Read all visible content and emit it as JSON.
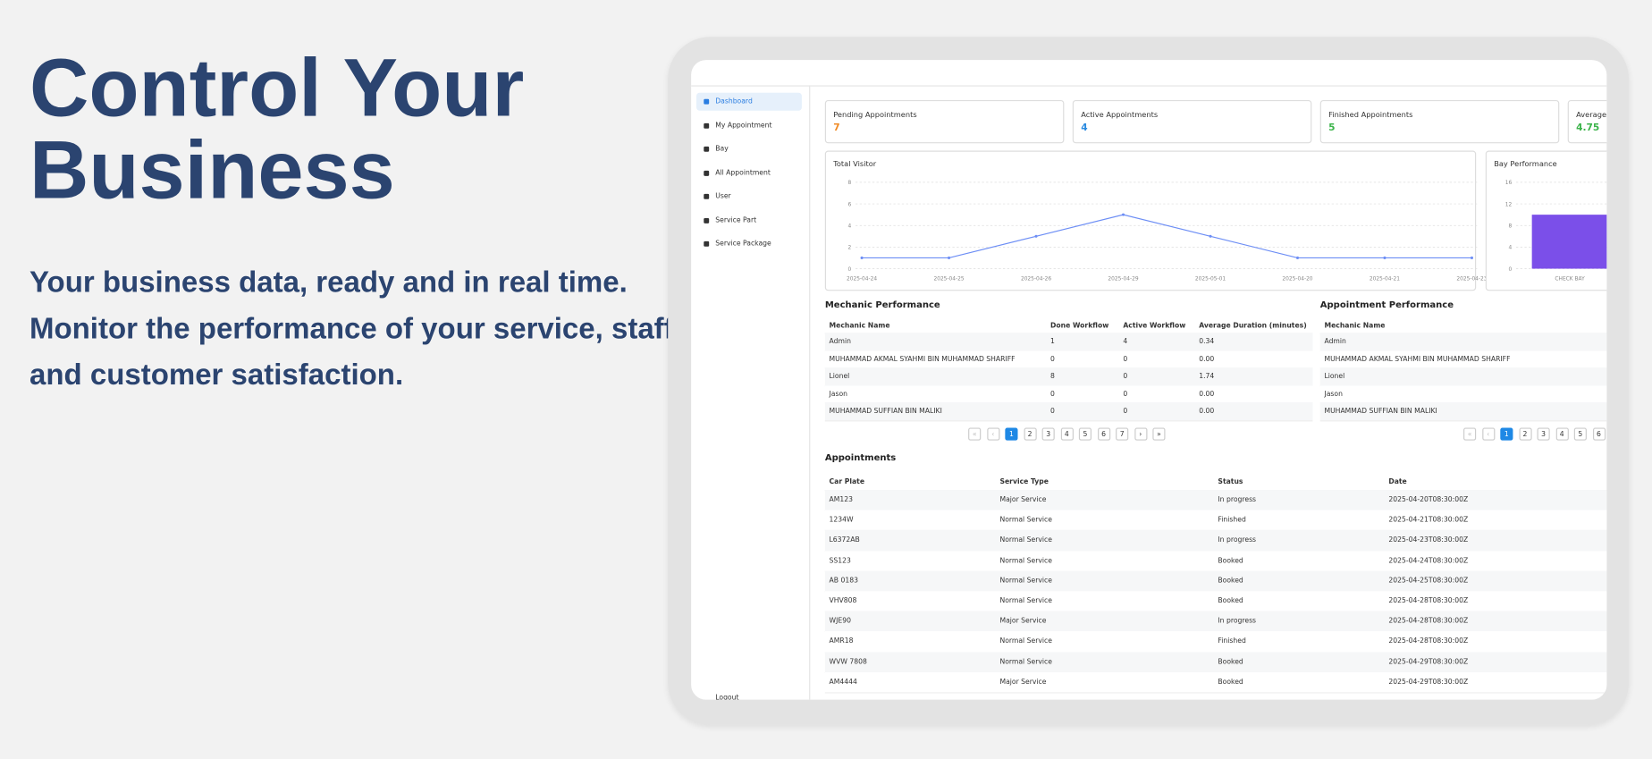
{
  "headline": "Control Your Business",
  "subheadline": "Your business data, ready and in real time. Monitor the performance of your service, staff and customer satisfaction.",
  "sidebar": {
    "items": [
      "Dashboard",
      "My Appointment",
      "Bay",
      "All Appointment",
      "User",
      "Service Part",
      "Service Package"
    ],
    "logout": "Logout"
  },
  "stats": [
    {
      "label": "Pending Appointments",
      "value": 7,
      "color": "#f08a24"
    },
    {
      "label": "Active Appointments",
      "value": 4,
      "color": "#2a8ae0"
    },
    {
      "label": "Finished Appointments",
      "value": 5,
      "color": "#3cb44b"
    },
    {
      "label": "Average F",
      "value": 4.75,
      "color": "#3cb44b"
    }
  ],
  "total_visitor": {
    "type": "line",
    "title": "Total Visitor",
    "categories": [
      "2025-04-24",
      "2025-04-25",
      "2025-04-26",
      "2025-04-29",
      "2025-05-01",
      "2025-04-20",
      "2025-04-21",
      "2025-04-23"
    ],
    "values": [
      1,
      1,
      3,
      5,
      3,
      1,
      1,
      1
    ],
    "ylim": [
      0,
      8
    ],
    "yticks": [
      0,
      2,
      4,
      6,
      8
    ],
    "color": "#6d8ef5",
    "grid": true
  },
  "bay_performance": {
    "type": "bar",
    "title": "Bay Performance",
    "categories": [
      "CHECK BAY"
    ],
    "values": [
      10
    ],
    "ylim": [
      0,
      16
    ],
    "yticks": [
      0,
      4,
      8,
      12,
      16
    ],
    "color": "#7b4fe9",
    "grid": true
  },
  "mechanic_performance": {
    "title": "Mechanic Performance",
    "columns": [
      "Mechanic Name",
      "Done Workflow",
      "Active Workflow",
      "Average Duration (minutes)"
    ],
    "rows": [
      [
        "Admin",
        "1",
        "4",
        "0.34"
      ],
      [
        "MUHAMMAD AKMAL SYAHMI BIN MUHAMMAD SHARIFF",
        "0",
        "0",
        "0.00"
      ],
      [
        "Lionel",
        "8",
        "0",
        "1.74"
      ],
      [
        "Jason",
        "0",
        "0",
        "0.00"
      ],
      [
        "MUHAMMAD SUFFIAN BIN MALIKI",
        "0",
        "0",
        "0.00"
      ]
    ],
    "pages": [
      1,
      2,
      3,
      4,
      5,
      6,
      7
    ]
  },
  "appointment_performance": {
    "title": "Appointment Performance",
    "columns": [
      "Mechanic Name"
    ],
    "rows": [
      [
        "Admin"
      ],
      [
        "MUHAMMAD AKMAL SYAHMI BIN MUHAMMAD SHARIFF"
      ],
      [
        "Lionel"
      ],
      [
        "Jason"
      ],
      [
        "MUHAMMAD SUFFIAN BIN MALIKI"
      ]
    ],
    "pages": [
      1,
      2,
      3,
      4,
      5,
      6
    ]
  },
  "appointments": {
    "title": "Appointments",
    "columns": [
      "Car Plate",
      "Service Type",
      "Status",
      "Date"
    ],
    "rows": [
      [
        "AM123",
        "Major Service",
        "In progress",
        "2025-04-20T08:30:00Z"
      ],
      [
        "1234W",
        "Normal Service",
        "Finished",
        "2025-04-21T08:30:00Z"
      ],
      [
        "L6372AB",
        "Normal Service",
        "In progress",
        "2025-04-23T08:30:00Z"
      ],
      [
        "SS123",
        "Normal Service",
        "Booked",
        "2025-04-24T08:30:00Z"
      ],
      [
        "AB 0183",
        "Normal Service",
        "Booked",
        "2025-04-25T08:30:00Z"
      ],
      [
        "VHV808",
        "Normal Service",
        "Booked",
        "2025-04-28T08:30:00Z"
      ],
      [
        "WJE90",
        "Major Service",
        "In progress",
        "2025-04-28T08:30:00Z"
      ],
      [
        "AMR18",
        "Normal Service",
        "Finished",
        "2025-04-28T08:30:00Z"
      ],
      [
        "WVW 7808",
        "Normal Service",
        "Booked",
        "2025-04-29T08:30:00Z"
      ],
      [
        "AM4444",
        "Major Service",
        "Booked",
        "2025-04-29T08:30:00Z"
      ]
    ]
  }
}
